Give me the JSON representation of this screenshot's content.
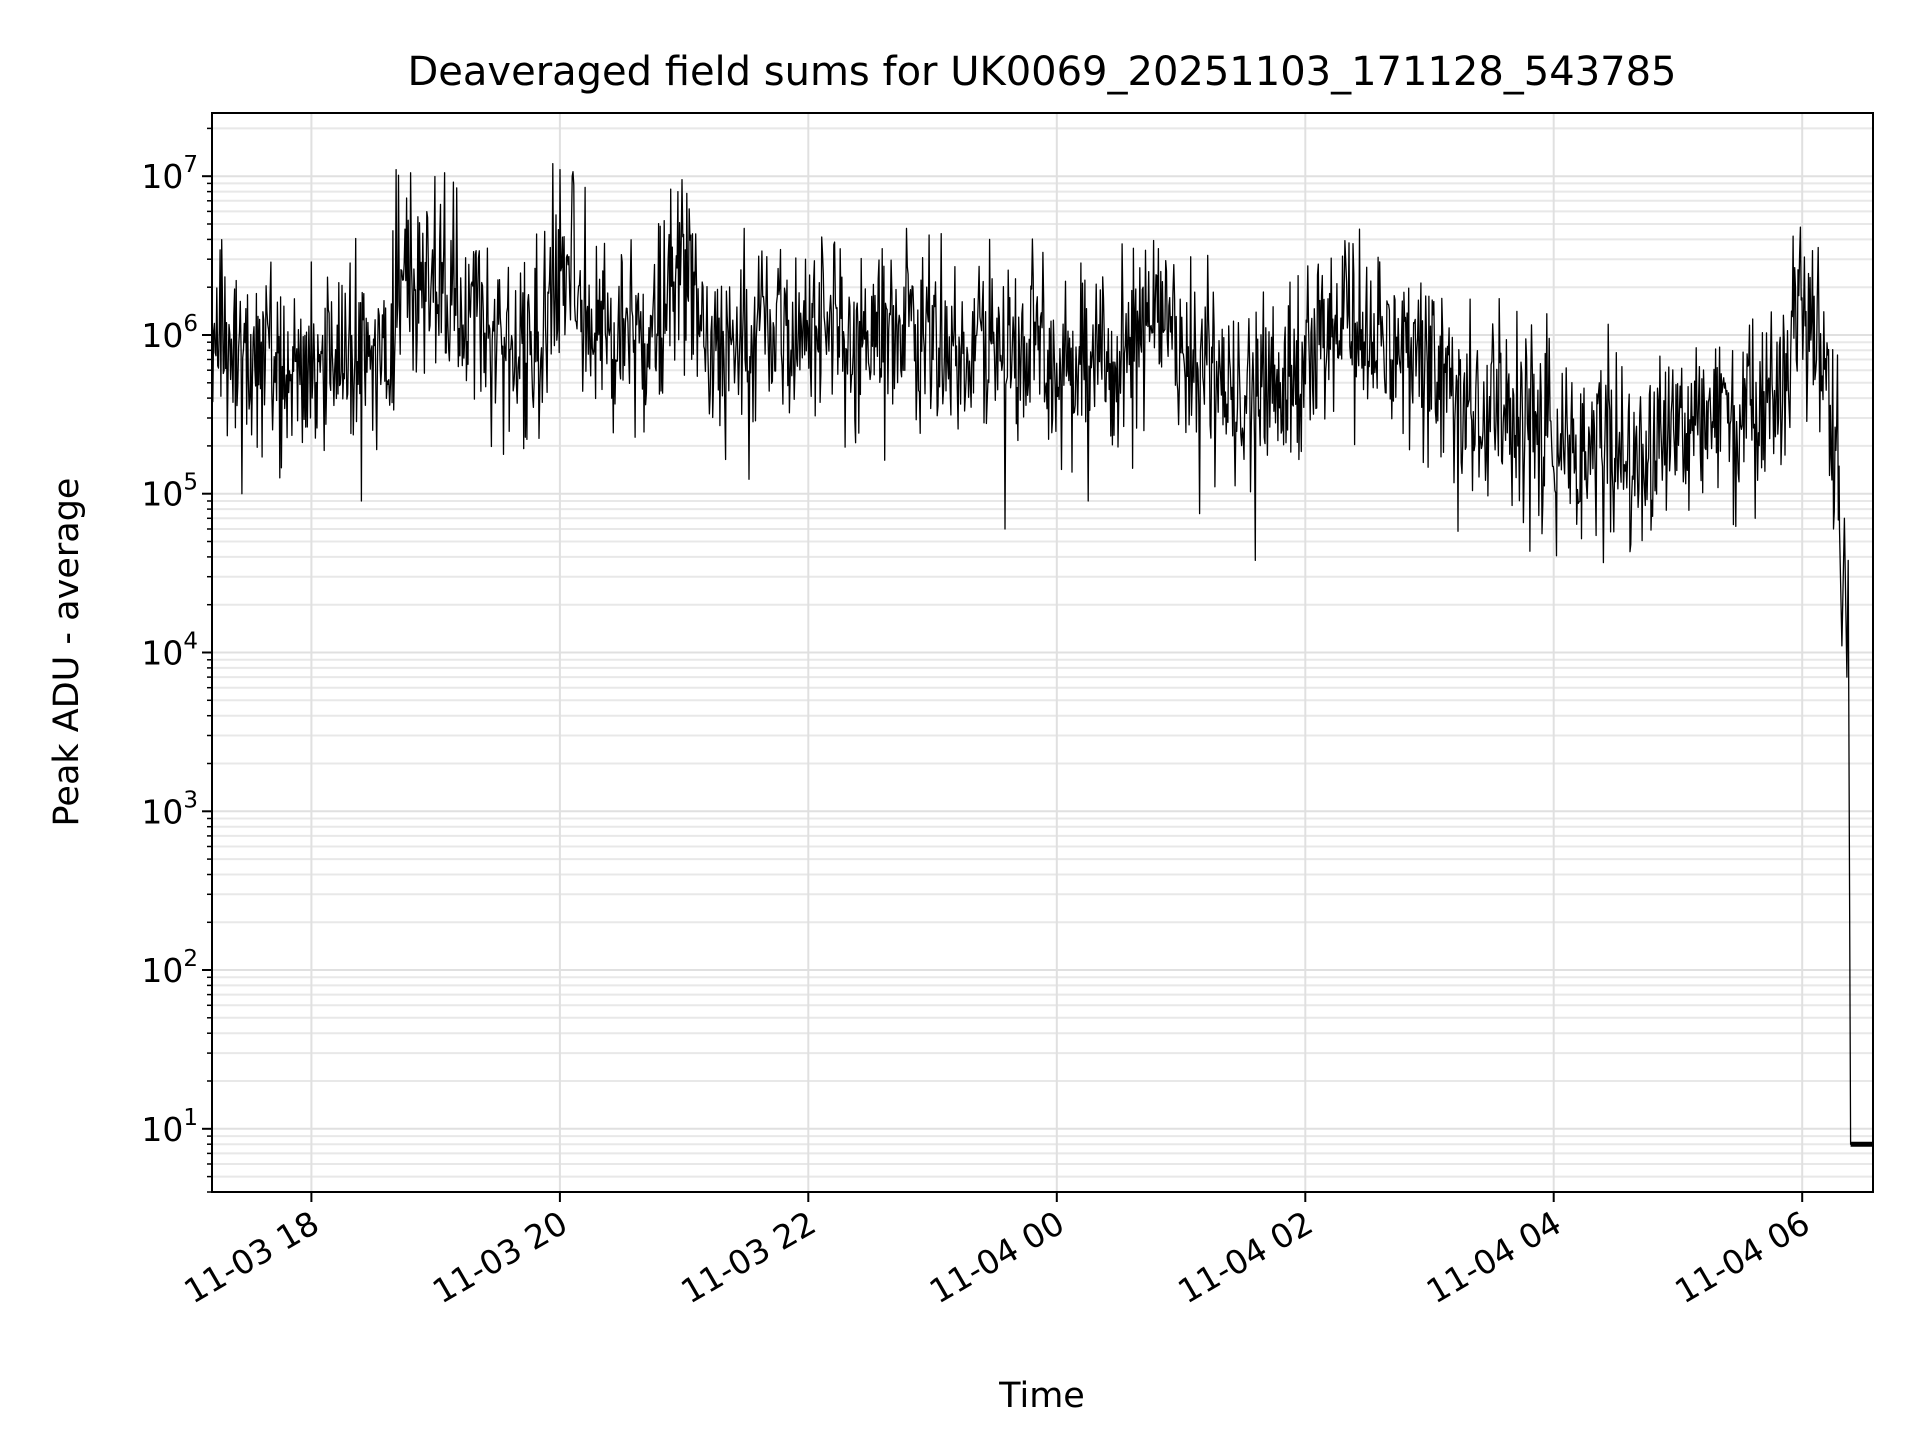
{
  "chart_data": {
    "type": "line",
    "title": "Deaveraged field sums for UK0069_20251103_171128_543785",
    "xlabel": "Time",
    "ylabel": "Peak ADU - average",
    "yscale": "log",
    "ylim": [
      4,
      25000000
    ],
    "xlim_hours": [
      17.2,
      30.57
    ],
    "grid": true,
    "x_ticks": [
      {
        "hour": 18,
        "label": "11-03 18"
      },
      {
        "hour": 20,
        "label": "11-03 20"
      },
      {
        "hour": 22,
        "label": "11-03 22"
      },
      {
        "hour": 24,
        "label": "11-04 00"
      },
      {
        "hour": 26,
        "label": "11-04 02"
      },
      {
        "hour": 28,
        "label": "11-04 04"
      },
      {
        "hour": 30,
        "label": "11-04 06"
      }
    ],
    "y_ticks": [
      {
        "value": 10,
        "base": "10",
        "exp": "1"
      },
      {
        "value": 100,
        "base": "10",
        "exp": "2"
      },
      {
        "value": 1000,
        "base": "10",
        "exp": "3"
      },
      {
        "value": 10000,
        "base": "10",
        "exp": "4"
      },
      {
        "value": 100000,
        "base": "10",
        "exp": "5"
      },
      {
        "value": 1000000,
        "base": "10",
        "exp": "6"
      },
      {
        "value": 10000000,
        "base": "10",
        "exp": "7"
      }
    ],
    "series": [
      {
        "name": "Peak ADU - average",
        "color": "#000000",
        "trend_hours": [
          17.2,
          17.6,
          18.0,
          18.3,
          18.65,
          18.75,
          19.0,
          19.5,
          19.85,
          19.95,
          20.3,
          20.7,
          20.95,
          21.2,
          21.6,
          22.0,
          22.5,
          23.0,
          23.5,
          24.0,
          24.5,
          24.8,
          25.0,
          25.5,
          25.8,
          26.3,
          26.9,
          27.3,
          27.7,
          28.3,
          28.8,
          29.3,
          29.8,
          30.0,
          30.1,
          30.2,
          30.28,
          30.33,
          30.37
        ],
        "trend_values": [
          1000000,
          600000,
          650000,
          700000,
          800000,
          3000000,
          2000000,
          900000,
          700000,
          3000000,
          1200000,
          900000,
          2500000,
          800000,
          900000,
          1000000,
          1000000,
          900000,
          800000,
          700000,
          650000,
          1400000,
          900000,
          400000,
          500000,
          1000000,
          800000,
          400000,
          250000,
          200000,
          200000,
          300000,
          400000,
          1300000,
          1000000,
          400000,
          200000,
          30000,
          20000
        ],
        "sample_step_hours": 0.0065,
        "noise_decades": 0.6,
        "seed": 69,
        "spikes": [
          {
            "hour": 18.68,
            "value": 11000000
          },
          {
            "hour": 18.8,
            "value": 10500000
          },
          {
            "hour": 19.07,
            "value": 10500000
          },
          {
            "hour": 19.94,
            "value": 12000000
          },
          {
            "hour": 20.0,
            "value": 11000000
          },
          {
            "hour": 20.1,
            "value": 10000000
          },
          {
            "hour": 20.2,
            "value": 8500000
          },
          {
            "hour": 20.95,
            "value": 8000000
          },
          {
            "hour": 23.46,
            "value": 4000000
          },
          {
            "hour": 24.82,
            "value": 3500000
          },
          {
            "hour": 26.35,
            "value": 3800000
          },
          {
            "hour": 29.98,
            "value": 3200000
          },
          {
            "hour": 30.08,
            "value": 3400000
          },
          {
            "hour": 17.44,
            "value": 100000
          },
          {
            "hour": 18.4,
            "value": 90000
          },
          {
            "hour": 23.58,
            "value": 60000
          },
          {
            "hour": 24.25,
            "value": 90000
          },
          {
            "hour": 25.15,
            "value": 75000
          },
          {
            "hour": 25.6,
            "value": 38000
          },
          {
            "hour": 27.23,
            "value": 58000
          },
          {
            "hour": 28.62,
            "value": 48000
          },
          {
            "hour": 29.62,
            "value": 70000
          },
          {
            "hour": 30.25,
            "value": 60000
          }
        ],
        "tail": [
          {
            "hour": 30.3,
            "value": 60000
          },
          {
            "hour": 30.32,
            "value": 11000
          },
          {
            "hour": 30.34,
            "value": 70000
          },
          {
            "hour": 30.36,
            "value": 7000
          },
          {
            "hour": 30.37,
            "value": 38000
          },
          {
            "hour": 30.39,
            "value": 8
          },
          {
            "hour": 30.57,
            "value": 8
          }
        ]
      }
    ]
  }
}
